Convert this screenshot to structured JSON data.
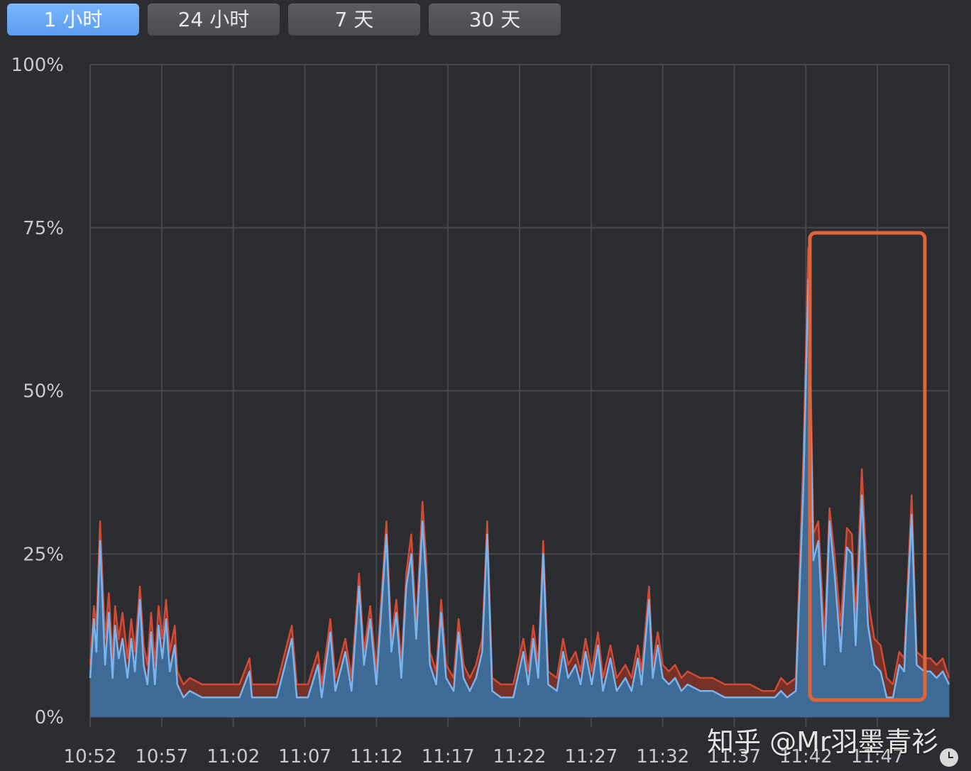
{
  "tabs": [
    {
      "label": "1 小时",
      "active": true
    },
    {
      "label": "24 小时",
      "active": false
    },
    {
      "label": "7 天",
      "active": false
    },
    {
      "label": "30 天",
      "active": false
    }
  ],
  "watermark": "知乎 @Mr羽墨青衫",
  "chart_data": {
    "type": "area",
    "yticks": [
      "100%",
      "75%",
      "50%",
      "25%",
      "0%"
    ],
    "ylim": [
      0,
      100
    ],
    "xticks": [
      "10:52",
      "10:57",
      "11:02",
      "11:07",
      "11:12",
      "11:17",
      "11:22",
      "11:27",
      "11:32",
      "11:37",
      "11:42",
      "11:47"
    ],
    "x_range_minutes": [
      0,
      60
    ],
    "grid": true,
    "colors": {
      "system": "#c8432f",
      "user": "#6aa9e9",
      "user_fill": "#3e6b95",
      "highlight": "#e0643a"
    },
    "series": [
      {
        "stack": "total",
        "values": [
          [
            0,
            8
          ],
          [
            0.3,
            17
          ],
          [
            0.5,
            14
          ],
          [
            0.8,
            30
          ],
          [
            1.2,
            12
          ],
          [
            1.5,
            19
          ],
          [
            1.8,
            9
          ],
          [
            2.0,
            17
          ],
          [
            2.3,
            12
          ],
          [
            2.6,
            16
          ],
          [
            3.0,
            9
          ],
          [
            3.3,
            15
          ],
          [
            3.6,
            10
          ],
          [
            4.0,
            20
          ],
          [
            4.3,
            11
          ],
          [
            4.6,
            8
          ],
          [
            4.9,
            16
          ],
          [
            5.2,
            8
          ],
          [
            5.5,
            17
          ],
          [
            5.8,
            12
          ],
          [
            6.1,
            18
          ],
          [
            6.4,
            10
          ],
          [
            6.8,
            14
          ],
          [
            7.0,
            7
          ],
          [
            7.5,
            5
          ],
          [
            8,
            6
          ],
          [
            9,
            5
          ],
          [
            10,
            5
          ],
          [
            11,
            5
          ],
          [
            12,
            5
          ],
          [
            12.8,
            9
          ],
          [
            13,
            5
          ],
          [
            14,
            5
          ],
          [
            15,
            5
          ],
          [
            16.2,
            14
          ],
          [
            16.6,
            5
          ],
          [
            17.5,
            5
          ],
          [
            18.3,
            10
          ],
          [
            18.6,
            5
          ],
          [
            19.3,
            15
          ],
          [
            19.7,
            6
          ],
          [
            20.5,
            12
          ],
          [
            21,
            6
          ],
          [
            21.6,
            22
          ],
          [
            22,
            10
          ],
          [
            22.5,
            17
          ],
          [
            23,
            7
          ],
          [
            23.8,
            30
          ],
          [
            24.2,
            12
          ],
          [
            24.6,
            18
          ],
          [
            25,
            8
          ],
          [
            25.4,
            22
          ],
          [
            25.8,
            28
          ],
          [
            26.2,
            14
          ],
          [
            26.7,
            33
          ],
          [
            27,
            24
          ],
          [
            27.3,
            10
          ],
          [
            27.8,
            7
          ],
          [
            28.2,
            18
          ],
          [
            28.6,
            8
          ],
          [
            29.2,
            6
          ],
          [
            29.6,
            15
          ],
          [
            30,
            8
          ],
          [
            30.5,
            6
          ],
          [
            31,
            8
          ],
          [
            31.5,
            12
          ],
          [
            31.9,
            30
          ],
          [
            32.3,
            6
          ],
          [
            33,
            5
          ],
          [
            34,
            5
          ],
          [
            34.8,
            12
          ],
          [
            35.2,
            7
          ],
          [
            35.6,
            14
          ],
          [
            36,
            8
          ],
          [
            36.4,
            27
          ],
          [
            36.8,
            7
          ],
          [
            37.5,
            6
          ],
          [
            38,
            12
          ],
          [
            38.4,
            8
          ],
          [
            39,
            10
          ],
          [
            39.4,
            7
          ],
          [
            39.8,
            12
          ],
          [
            40.3,
            7
          ],
          [
            40.8,
            13
          ],
          [
            41.2,
            6
          ],
          [
            41.8,
            11
          ],
          [
            42.3,
            6
          ],
          [
            43,
            8
          ],
          [
            43.5,
            6
          ],
          [
            44,
            11
          ],
          [
            44.3,
            7
          ],
          [
            44.9,
            20
          ],
          [
            45.2,
            8
          ],
          [
            45.6,
            13
          ],
          [
            46,
            8
          ],
          [
            46.5,
            7
          ],
          [
            47,
            8
          ],
          [
            47.5,
            6
          ],
          [
            48,
            7
          ],
          [
            49,
            6
          ],
          [
            50,
            6
          ],
          [
            51,
            5
          ],
          [
            52,
            5
          ],
          [
            53,
            5
          ],
          [
            54,
            4
          ],
          [
            55,
            4
          ],
          [
            55.5,
            6
          ],
          [
            56,
            5
          ],
          [
            56.7,
            6
          ],
          [
            57.3,
            40
          ],
          [
            57.7,
            72
          ],
          [
            58.1,
            28
          ],
          [
            58.5,
            30
          ],
          [
            59,
            12
          ],
          [
            59.4,
            32
          ],
          [
            59.8,
            25
          ],
          [
            60.3,
            14
          ],
          [
            60.8,
            29
          ],
          [
            61.2,
            28
          ],
          [
            61.5,
            15
          ],
          [
            62,
            38
          ],
          [
            62.5,
            18
          ],
          [
            63,
            12
          ],
          [
            63.5,
            11
          ],
          [
            64,
            6
          ],
          [
            64.5,
            5
          ],
          [
            65,
            10
          ],
          [
            65.4,
            9
          ],
          [
            66,
            34
          ],
          [
            66.4,
            10
          ],
          [
            67,
            9
          ],
          [
            67.5,
            9
          ],
          [
            68,
            8
          ],
          [
            68.5,
            9
          ],
          [
            69,
            6
          ]
        ],
        "line_color": "#d24a33"
      },
      {
        "stack": "user",
        "values": [
          [
            0,
            6
          ],
          [
            0.3,
            15
          ],
          [
            0.5,
            10
          ],
          [
            0.8,
            27
          ],
          [
            1.2,
            8
          ],
          [
            1.5,
            16
          ],
          [
            1.8,
            6
          ],
          [
            2.0,
            14
          ],
          [
            2.3,
            9
          ],
          [
            2.6,
            12
          ],
          [
            3.0,
            6
          ],
          [
            3.3,
            12
          ],
          [
            3.6,
            7
          ],
          [
            4.0,
            18
          ],
          [
            4.3,
            8
          ],
          [
            4.6,
            5
          ],
          [
            4.9,
            13
          ],
          [
            5.2,
            5
          ],
          [
            5.5,
            14
          ],
          [
            5.8,
            9
          ],
          [
            6.1,
            15
          ],
          [
            6.4,
            7
          ],
          [
            6.8,
            11
          ],
          [
            7.0,
            5
          ],
          [
            7.5,
            3
          ],
          [
            8,
            4
          ],
          [
            9,
            3
          ],
          [
            10,
            3
          ],
          [
            11,
            3
          ],
          [
            12,
            3
          ],
          [
            12.8,
            7
          ],
          [
            13,
            3
          ],
          [
            14,
            3
          ],
          [
            15,
            3
          ],
          [
            16.2,
            12
          ],
          [
            16.6,
            3
          ],
          [
            17.5,
            3
          ],
          [
            18.3,
            8
          ],
          [
            18.6,
            3
          ],
          [
            19.3,
            13
          ],
          [
            19.7,
            4
          ],
          [
            20.5,
            10
          ],
          [
            21,
            4
          ],
          [
            21.6,
            20
          ],
          [
            22,
            8
          ],
          [
            22.5,
            15
          ],
          [
            23,
            5
          ],
          [
            23.8,
            28
          ],
          [
            24.2,
            10
          ],
          [
            24.6,
            16
          ],
          [
            25,
            6
          ],
          [
            25.4,
            20
          ],
          [
            25.8,
            25
          ],
          [
            26.2,
            12
          ],
          [
            26.7,
            30
          ],
          [
            27,
            21
          ],
          [
            27.3,
            8
          ],
          [
            27.8,
            5
          ],
          [
            28.2,
            16
          ],
          [
            28.6,
            6
          ],
          [
            29.2,
            4
          ],
          [
            29.6,
            13
          ],
          [
            30,
            6
          ],
          [
            30.5,
            4
          ],
          [
            31,
            6
          ],
          [
            31.5,
            10
          ],
          [
            31.9,
            28
          ],
          [
            32.3,
            4
          ],
          [
            33,
            3
          ],
          [
            34,
            3
          ],
          [
            34.8,
            10
          ],
          [
            35.2,
            5
          ],
          [
            35.6,
            12
          ],
          [
            36,
            6
          ],
          [
            36.4,
            25
          ],
          [
            36.8,
            5
          ],
          [
            37.5,
            4
          ],
          [
            38,
            10
          ],
          [
            38.4,
            6
          ],
          [
            39,
            8
          ],
          [
            39.4,
            5
          ],
          [
            39.8,
            10
          ],
          [
            40.3,
            5
          ],
          [
            40.8,
            11
          ],
          [
            41.2,
            4
          ],
          [
            41.8,
            9
          ],
          [
            42.3,
            4
          ],
          [
            43,
            6
          ],
          [
            43.5,
            4
          ],
          [
            44,
            9
          ],
          [
            44.3,
            5
          ],
          [
            44.9,
            18
          ],
          [
            45.2,
            6
          ],
          [
            45.6,
            11
          ],
          [
            46,
            6
          ],
          [
            46.5,
            5
          ],
          [
            47,
            6
          ],
          [
            47.5,
            4
          ],
          [
            48,
            5
          ],
          [
            49,
            4
          ],
          [
            50,
            4
          ],
          [
            51,
            3
          ],
          [
            52,
            3
          ],
          [
            53,
            3
          ],
          [
            54,
            3
          ],
          [
            55,
            3
          ],
          [
            55.5,
            4
          ],
          [
            56,
            3
          ],
          [
            56.7,
            4
          ],
          [
            57.3,
            35
          ],
          [
            57.7,
            67
          ],
          [
            58.1,
            24
          ],
          [
            58.5,
            27
          ],
          [
            59,
            8
          ],
          [
            59.4,
            30
          ],
          [
            59.8,
            22
          ],
          [
            60.3,
            10
          ],
          [
            60.8,
            26
          ],
          [
            61.2,
            25
          ],
          [
            61.5,
            11
          ],
          [
            62,
            34
          ],
          [
            62.5,
            14
          ],
          [
            63,
            8
          ],
          [
            63.5,
            7
          ],
          [
            64,
            3
          ],
          [
            64.5,
            3
          ],
          [
            65,
            8
          ],
          [
            65.4,
            7
          ],
          [
            66,
            31
          ],
          [
            66.4,
            8
          ],
          [
            67,
            7
          ],
          [
            67.5,
            7
          ],
          [
            68,
            6
          ],
          [
            68.5,
            7
          ],
          [
            69,
            5
          ]
        ],
        "line_color": "#7ab4ef"
      }
    ]
  }
}
